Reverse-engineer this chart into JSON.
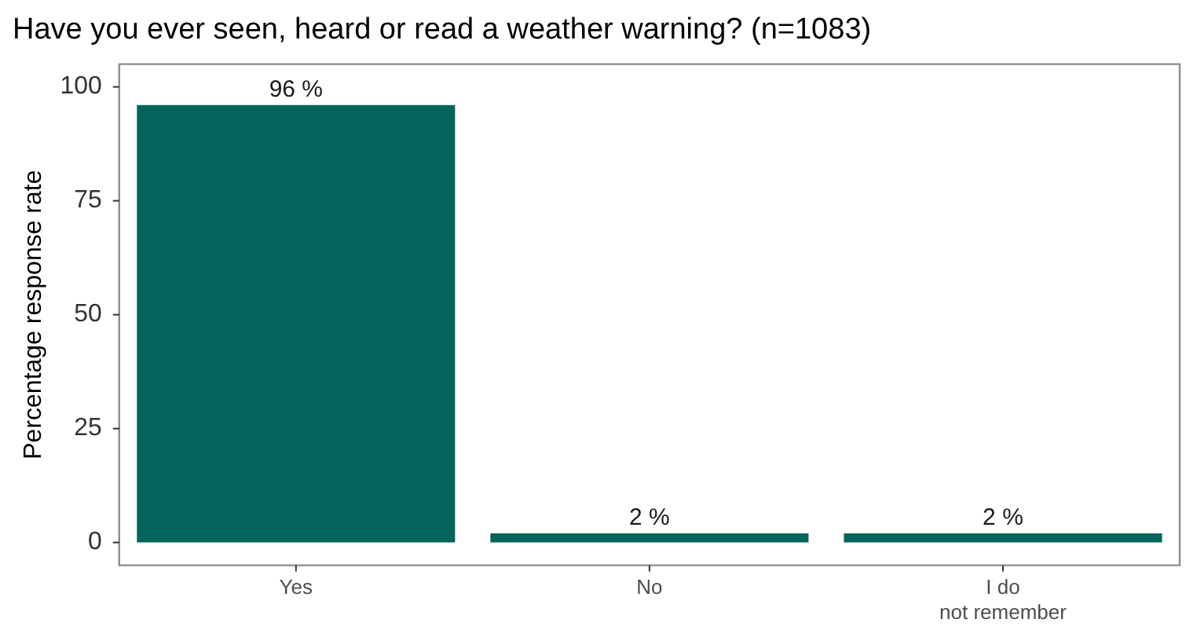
{
  "chart_data": {
    "type": "bar",
    "title": "Have you ever seen, heard or read a weather warning? (n=1083)",
    "ylabel": "Percentage response rate",
    "categories": [
      "Yes",
      "No",
      "I do\nnot remember"
    ],
    "values": [
      96,
      2,
      2
    ],
    "color": "#02645a",
    "value_labels": [
      "96 %",
      "2 %",
      "2 %"
    ],
    "ylim": [
      -5,
      105
    ],
    "yticks": [
      0,
      25,
      50,
      75,
      100
    ],
    "grid": false,
    "legend": false
  }
}
